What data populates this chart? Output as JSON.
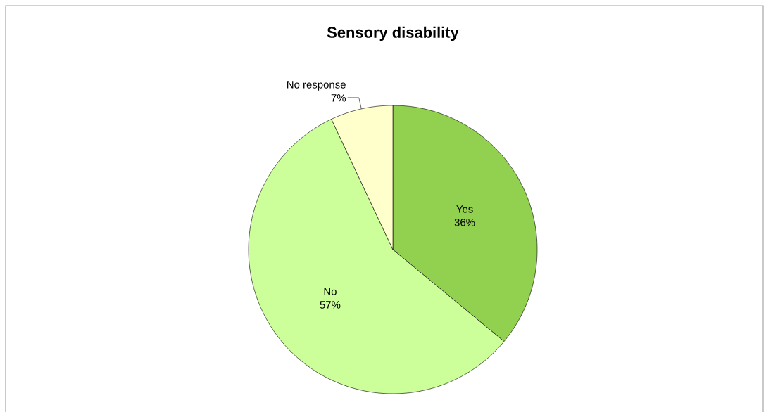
{
  "chart_data": {
    "type": "pie",
    "title": "Sensory disability",
    "categories": [
      "Yes",
      "No",
      "No response"
    ],
    "values": [
      36,
      57,
      7
    ],
    "colors": [
      "#92d050",
      "#ccff99",
      "#ffffcc"
    ],
    "value_labels": [
      "36%",
      "57%",
      "7%"
    ]
  }
}
